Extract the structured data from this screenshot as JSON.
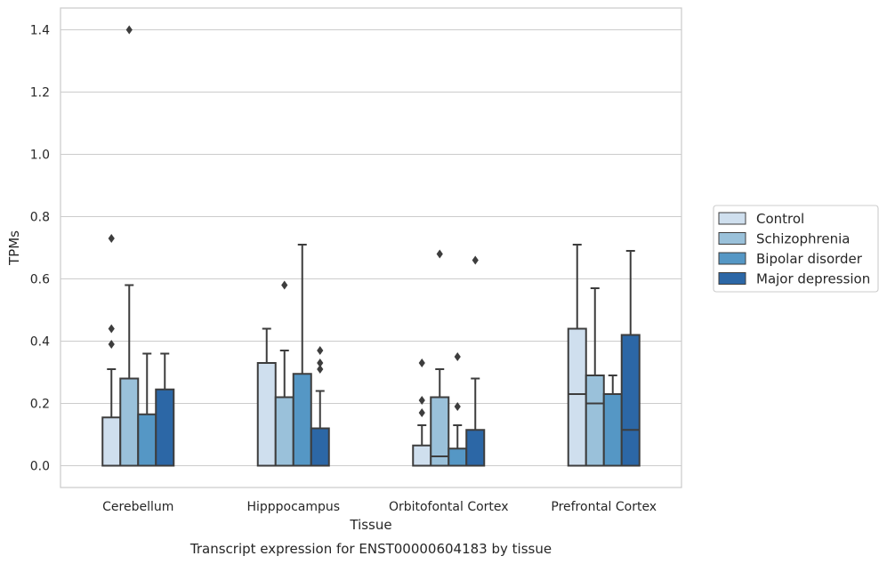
{
  "chart_data": {
    "type": "boxplot",
    "xlabel": "Tissue",
    "ylabel": "TPMs",
    "caption": "Transcript expression for ENST00000604183 by tissue",
    "ylim": [
      -0.07,
      1.47
    ],
    "yticks": [
      0.0,
      0.2,
      0.4,
      0.6,
      0.8,
      1.0,
      1.2,
      1.4
    ],
    "ytick_labels": [
      "0.0",
      "0.2",
      "0.4",
      "0.6",
      "0.8",
      "1.0",
      "1.2",
      "1.4"
    ],
    "grid": "horizontal",
    "legend_position": "right",
    "categories": [
      "Cerebellum",
      "Hipppocampus",
      "Orbitofontal Cortex",
      "Prefrontal Cortex"
    ],
    "series": [
      {
        "name": "Control",
        "color": "#cfdfee",
        "boxes": [
          {
            "whislo": 0.0,
            "q1": 0.0,
            "med": 0.0,
            "q3": 0.155,
            "whishi": 0.31,
            "fliers": [
              0.39,
              0.44,
              0.73
            ]
          },
          {
            "whislo": 0.0,
            "q1": 0.0,
            "med": 0.0,
            "q3": 0.33,
            "whishi": 0.44,
            "fliers": []
          },
          {
            "whislo": 0.0,
            "q1": 0.0,
            "med": 0.0,
            "q3": 0.065,
            "whishi": 0.13,
            "fliers": [
              0.17,
              0.21,
              0.33
            ]
          },
          {
            "whislo": 0.0,
            "q1": 0.0,
            "med": 0.23,
            "q3": 0.44,
            "whishi": 0.71,
            "fliers": []
          }
        ]
      },
      {
        "name": "Schizophrenia",
        "color": "#9ac1da",
        "boxes": [
          {
            "whislo": 0.0,
            "q1": 0.0,
            "med": 0.0,
            "q3": 0.28,
            "whishi": 0.58,
            "fliers": [
              1.4
            ]
          },
          {
            "whislo": 0.0,
            "q1": 0.0,
            "med": 0.0,
            "q3": 0.22,
            "whishi": 0.37,
            "fliers": [
              0.58
            ]
          },
          {
            "whislo": 0.0,
            "q1": 0.0,
            "med": 0.03,
            "q3": 0.22,
            "whishi": 0.31,
            "fliers": [
              0.68
            ]
          },
          {
            "whislo": 0.0,
            "q1": 0.0,
            "med": 0.2,
            "q3": 0.29,
            "whishi": 0.57,
            "fliers": []
          }
        ]
      },
      {
        "name": "Bipolar disorder",
        "color": "#5597c5",
        "boxes": [
          {
            "whislo": 0.0,
            "q1": 0.0,
            "med": 0.0,
            "q3": 0.165,
            "whishi": 0.36,
            "fliers": []
          },
          {
            "whislo": 0.0,
            "q1": 0.0,
            "med": 0.0,
            "q3": 0.295,
            "whishi": 0.71,
            "fliers": []
          },
          {
            "whislo": 0.0,
            "q1": 0.0,
            "med": 0.0,
            "q3": 0.055,
            "whishi": 0.13,
            "fliers": [
              0.19,
              0.35
            ]
          },
          {
            "whislo": 0.0,
            "q1": 0.0,
            "med": 0.23,
            "q3": 0.23,
            "whishi": 0.29,
            "fliers": []
          }
        ]
      },
      {
        "name": "Major depression",
        "color": "#2c67a6",
        "boxes": [
          {
            "whislo": 0.0,
            "q1": 0.0,
            "med": 0.0,
            "q3": 0.245,
            "whishi": 0.36,
            "fliers": []
          },
          {
            "whislo": 0.0,
            "q1": 0.0,
            "med": 0.0,
            "q3": 0.12,
            "whishi": 0.24,
            "fliers": [
              0.31,
              0.33,
              0.37
            ]
          },
          {
            "whislo": 0.0,
            "q1": 0.0,
            "med": 0.0,
            "q3": 0.115,
            "whishi": 0.28,
            "fliers": [
              0.66
            ]
          },
          {
            "whislo": 0.0,
            "q1": 0.0,
            "med": 0.115,
            "q3": 0.42,
            "whishi": 0.69,
            "fliers": []
          }
        ]
      }
    ]
  }
}
